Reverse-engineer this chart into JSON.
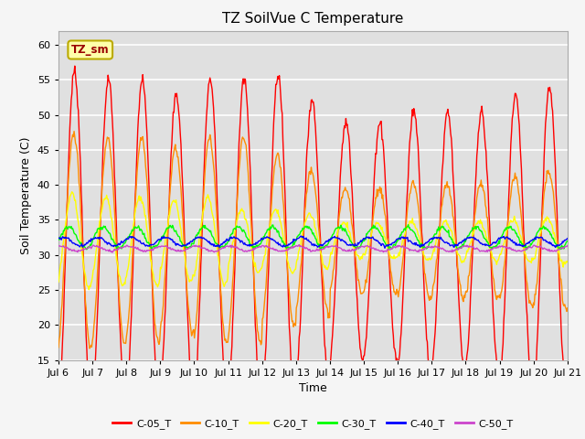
{
  "title": "TZ SoilVue C Temperature",
  "xlabel": "Time",
  "ylabel": "Soil Temperature (C)",
  "ylim": [
    15,
    62
  ],
  "yticks": [
    15,
    20,
    25,
    30,
    35,
    40,
    45,
    50,
    55,
    60
  ],
  "n_days": 15,
  "points_per_day": 48,
  "start_day": 6,
  "series_names": [
    "C-05_T",
    "C-10_T",
    "C-20_T",
    "C-30_T",
    "C-40_T",
    "C-50_T"
  ],
  "colors": {
    "C-05_T": "#ff0000",
    "C-10_T": "#ff8c00",
    "C-20_T": "#ffff00",
    "C-30_T": "#00ff00",
    "C-40_T": "#0000ff",
    "C-50_T": "#cc44cc"
  },
  "legend_label": "TZ_sm",
  "legend_box_color": "#ffffaa",
  "legend_text_color": "#990000",
  "legend_border_color": "#bbaa00",
  "plot_bg": "#e0e0e0",
  "fig_bg": "#f5f5f5",
  "grid_color": "#ffffff",
  "linewidth": 1.0
}
